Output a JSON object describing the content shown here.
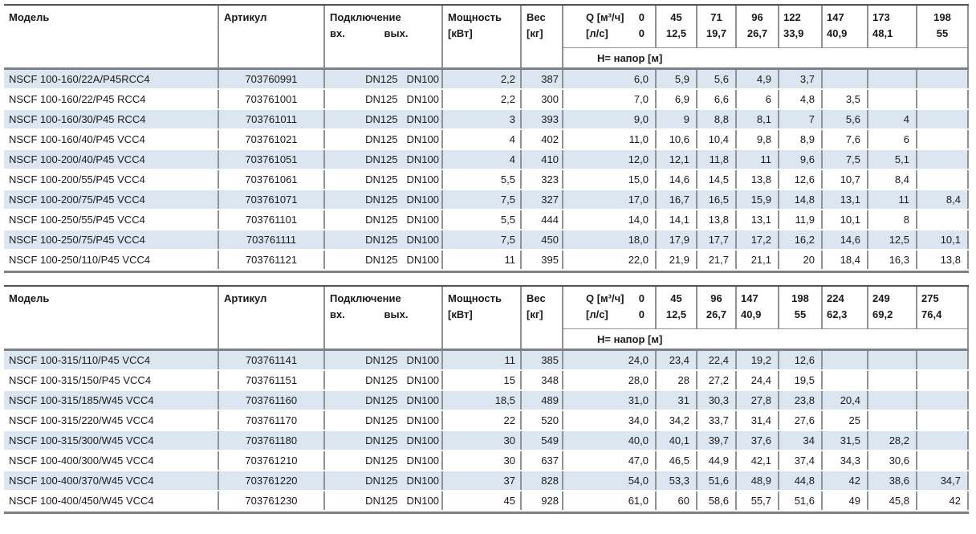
{
  "colors": {
    "stripe": "#dce6f1",
    "grid_line": "#8f9396",
    "thick_border": "#7d8084",
    "text": "#1a1a1a"
  },
  "columns": {
    "model": "Модель",
    "article": "Артикул",
    "connection": "Подключение",
    "conn_in": "вх.",
    "conn_out": "вых.",
    "power": "Мощность",
    "power_unit": "[кВт]",
    "weight": "Вес",
    "weight_unit": "[кг]",
    "flow_label": "Q [м³/ч]",
    "flow_zero": "0",
    "flow_lps": "[л/с]",
    "flow_lps_zero": "0",
    "head_label": "H= напор [м]"
  },
  "tables": [
    {
      "q_m3h": [
        "45",
        "71",
        "96",
        "122",
        "147",
        "173",
        "198"
      ],
      "q_lps": [
        "12,5",
        "19,7",
        "26,7",
        "33,9",
        "40,9",
        "48,1",
        "55"
      ],
      "q_align": [
        "center",
        "center",
        "center",
        "left",
        "left",
        "left",
        "center"
      ],
      "rows": [
        {
          "model": "NSCF 100-160/22A/P45RCC4",
          "article": "703760991",
          "dn_in": "DN125",
          "dn_out": "DN100",
          "power": "2,2",
          "weight": "387",
          "h": [
            "6,0",
            "5,9",
            "5,6",
            "4,9",
            "3,7",
            "",
            "",
            ""
          ]
        },
        {
          "model": "NSCF 100-160/22/P45 RCC4",
          "article": "703761001",
          "dn_in": "DN125",
          "dn_out": "DN100",
          "power": "2,2",
          "weight": "300",
          "h": [
            "7,0",
            "6,9",
            "6,6",
            "6",
            "4,8",
            "3,5",
            "",
            ""
          ]
        },
        {
          "model": "NSCF 100-160/30/P45 RCC4",
          "article": "703761011",
          "dn_in": "DN125",
          "dn_out": "DN100",
          "power": "3",
          "weight": "393",
          "h": [
            "9,0",
            "9",
            "8,8",
            "8,1",
            "7",
            "5,6",
            "4",
            ""
          ]
        },
        {
          "model": "NSCF 100-160/40/P45 VCC4",
          "article": "703761021",
          "dn_in": "DN125",
          "dn_out": "DN100",
          "power": "4",
          "weight": "402",
          "h": [
            "11,0",
            "10,6",
            "10,4",
            "9,8",
            "8,9",
            "7,6",
            "6",
            ""
          ]
        },
        {
          "model": "NSCF 100-200/40/P45 VCC4",
          "article": "703761051",
          "dn_in": "DN125",
          "dn_out": "DN100",
          "power": "4",
          "weight": "410",
          "h": [
            "12,0",
            "12,1",
            "11,8",
            "11",
            "9,6",
            "7,5",
            "5,1",
            ""
          ]
        },
        {
          "model": "NSCF 100-200/55/P45 VCC4",
          "article": "703761061",
          "dn_in": "DN125",
          "dn_out": "DN100",
          "power": "5,5",
          "weight": "323",
          "h": [
            "15,0",
            "14,6",
            "14,5",
            "13,8",
            "12,6",
            "10,7",
            "8,4",
            ""
          ]
        },
        {
          "model": "NSCF 100-200/75/P45 VCC4",
          "article": "703761071",
          "dn_in": "DN125",
          "dn_out": "DN100",
          "power": "7,5",
          "weight": "327",
          "h": [
            "17,0",
            "16,7",
            "16,5",
            "15,9",
            "14,8",
            "13,1",
            "11",
            "8,4"
          ]
        },
        {
          "model": "NSCF 100-250/55/P45 VCC4",
          "article": "703761101",
          "dn_in": "DN125",
          "dn_out": "DN100",
          "power": "5,5",
          "weight": "444",
          "h": [
            "14,0",
            "14,1",
            "13,8",
            "13,1",
            "11,9",
            "10,1",
            "8",
            ""
          ]
        },
        {
          "model": "NSCF 100-250/75/P45 VCC4",
          "article": "703761111",
          "dn_in": "DN125",
          "dn_out": "DN100",
          "power": "7,5",
          "weight": "450",
          "h": [
            "18,0",
            "17,9",
            "17,7",
            "17,2",
            "16,2",
            "14,6",
            "12,5",
            "10,1"
          ]
        },
        {
          "model": "NSCF 100-250/110/P45 VCC4",
          "article": "703761121",
          "dn_in": "DN125",
          "dn_out": "DN100",
          "power": "11",
          "weight": "395",
          "h": [
            "22,0",
            "21,9",
            "21,7",
            "21,1",
            "20",
            "18,4",
            "16,3",
            "13,8"
          ]
        }
      ]
    },
    {
      "q_m3h": [
        "45",
        "96",
        "147",
        "198",
        "224",
        "249",
        "275"
      ],
      "q_lps": [
        "12,5",
        "26,7",
        "40,9",
        "55",
        "62,3",
        "69,2",
        "76,4"
      ],
      "q_align": [
        "center",
        "center",
        "left",
        "center",
        "left",
        "left",
        "left"
      ],
      "rows": [
        {
          "model": "NSCF 100-315/110/P45 VCC4",
          "article": "703761141",
          "dn_in": "DN125",
          "dn_out": "DN100",
          "power": "11",
          "weight": "385",
          "h": [
            "24,0",
            "23,4",
            "22,4",
            "19,2",
            "12,6",
            "",
            "",
            ""
          ]
        },
        {
          "model": "NSCF 100-315/150/P45 VCC4",
          "article": "703761151",
          "dn_in": "DN125",
          "dn_out": "DN100",
          "power": "15",
          "weight": "348",
          "h": [
            "28,0",
            "28",
            "27,2",
            "24,4",
            "19,5",
            "",
            "",
            ""
          ]
        },
        {
          "model": "NSCF 100-315/185/W45 VCC4",
          "article": "703761160",
          "dn_in": "DN125",
          "dn_out": "DN100",
          "power": "18,5",
          "weight": "489",
          "h": [
            "31,0",
            "31",
            "30,3",
            "27,8",
            "23,8",
            "20,4",
            "",
            ""
          ]
        },
        {
          "model": "NSCF 100-315/220/W45 VCC4",
          "article": "703761170",
          "dn_in": "DN125",
          "dn_out": "DN100",
          "power": "22",
          "weight": "520",
          "h": [
            "34,0",
            "34,2",
            "33,7",
            "31,4",
            "27,6",
            "25",
            "",
            ""
          ]
        },
        {
          "model": "NSCF 100-315/300/W45 VCC4",
          "article": "703761180",
          "dn_in": "DN125",
          "dn_out": "DN100",
          "power": "30",
          "weight": "549",
          "h": [
            "40,0",
            "40,1",
            "39,7",
            "37,6",
            "34",
            "31,5",
            "28,2",
            ""
          ]
        },
        {
          "model": "NSCF 100-400/300/W45 VCC4",
          "article": "703761210",
          "dn_in": "DN125",
          "dn_out": "DN100",
          "power": "30",
          "weight": "637",
          "h": [
            "47,0",
            "46,5",
            "44,9",
            "42,1",
            "37,4",
            "34,3",
            "30,6",
            ""
          ]
        },
        {
          "model": "NSCF 100-400/370/W45 VCC4",
          "article": "703761220",
          "dn_in": "DN125",
          "dn_out": "DN100",
          "power": "37",
          "weight": "828",
          "h": [
            "54,0",
            "53,3",
            "51,6",
            "48,9",
            "44,8",
            "42",
            "38,6",
            "34,7"
          ]
        },
        {
          "model": "NSCF 100-400/450/W45 VCC4",
          "article": "703761230",
          "dn_in": "DN125",
          "dn_out": "DN100",
          "power": "45",
          "weight": "928",
          "h": [
            "61,0",
            "60",
            "58,6",
            "55,7",
            "51,6",
            "49",
            "45,8",
            "42"
          ]
        }
      ]
    }
  ]
}
